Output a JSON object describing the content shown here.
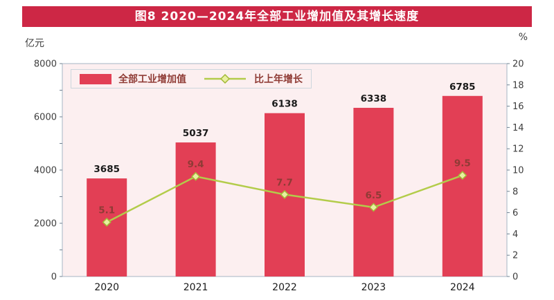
{
  "title": "图8 2020—2024年全部工业增加值及其增长速度",
  "chart_data": {
    "type": "bar",
    "subtype": "bar+line dual-axis combo",
    "title": "图8 2020—2024年全部工业增加值及其增长速度",
    "categories": [
      "2020",
      "2021",
      "2022",
      "2023",
      "2024"
    ],
    "series": [
      {
        "name": "全部工业增加值",
        "type": "bar",
        "axis": "left",
        "values": [
          3685,
          5037,
          6138,
          6338,
          6785
        ]
      },
      {
        "name": "比上年增长",
        "type": "line",
        "axis": "right",
        "values": [
          5.1,
          9.4,
          7.7,
          6.5,
          9.5
        ]
      }
    ],
    "left_axis": {
      "unit": "亿元",
      "min": 0,
      "max": 8000,
      "tick": 1000,
      "label_step": 2000
    },
    "right_axis": {
      "unit": "%",
      "min": 0,
      "max": 20,
      "tick": 2,
      "label_step": 2
    },
    "legend_position": "top-left inside plot",
    "grid": false
  },
  "colors": {
    "title_bg": "#cd2745",
    "bar": "#e23f55",
    "line": "#b3cc4a",
    "marker_fill": "#e9f0a0",
    "marker_stroke": "#a3ba38",
    "plot_bg": "#fceff0",
    "plot_border": "#a6b6c3",
    "axis_tick": "#708090",
    "tick_text": "#3d3d3d",
    "bar_label": "#1a1a1a",
    "category_text": "#1a1a1a",
    "line_label": "#8f3b35",
    "legend_text": "#8f3b35"
  }
}
